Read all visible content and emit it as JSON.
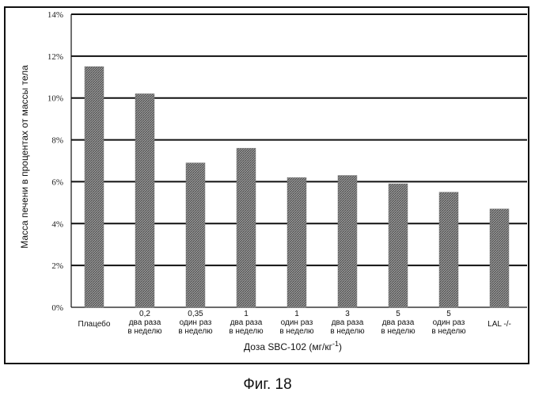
{
  "figure_caption": "Фиг. 18",
  "chart_data": {
    "type": "bar",
    "ylabel": "Масса печени в процентах от массы тела",
    "xlabel": "Доза SBC-102 (мг/кг",
    "xlabel_superscript": "-1",
    "xlabel_suffix": ")",
    "ylim": [
      0,
      14
    ],
    "yticks": [
      "0%",
      "2%",
      "4%",
      "6%",
      "8%",
      "10%",
      "12%",
      "14%"
    ],
    "grid": true,
    "categories": [
      [
        "Плацебо"
      ],
      [
        "0,2",
        "два раза",
        "в неделю"
      ],
      [
        "0,35",
        "один раз",
        "в неделю"
      ],
      [
        "1",
        "два раза",
        "в неделю"
      ],
      [
        "1",
        "один раз",
        "в неделю"
      ],
      [
        "3",
        "два раза",
        "в неделю"
      ],
      [
        "5",
        "два раза",
        "в неделю"
      ],
      [
        "5",
        "один раз",
        "в неделю"
      ],
      [
        "LAL -/-"
      ]
    ],
    "values": [
      11.5,
      10.2,
      6.9,
      7.6,
      6.2,
      6.3,
      5.9,
      5.5,
      4.7
    ],
    "bar_color": "#7a7a7a"
  }
}
